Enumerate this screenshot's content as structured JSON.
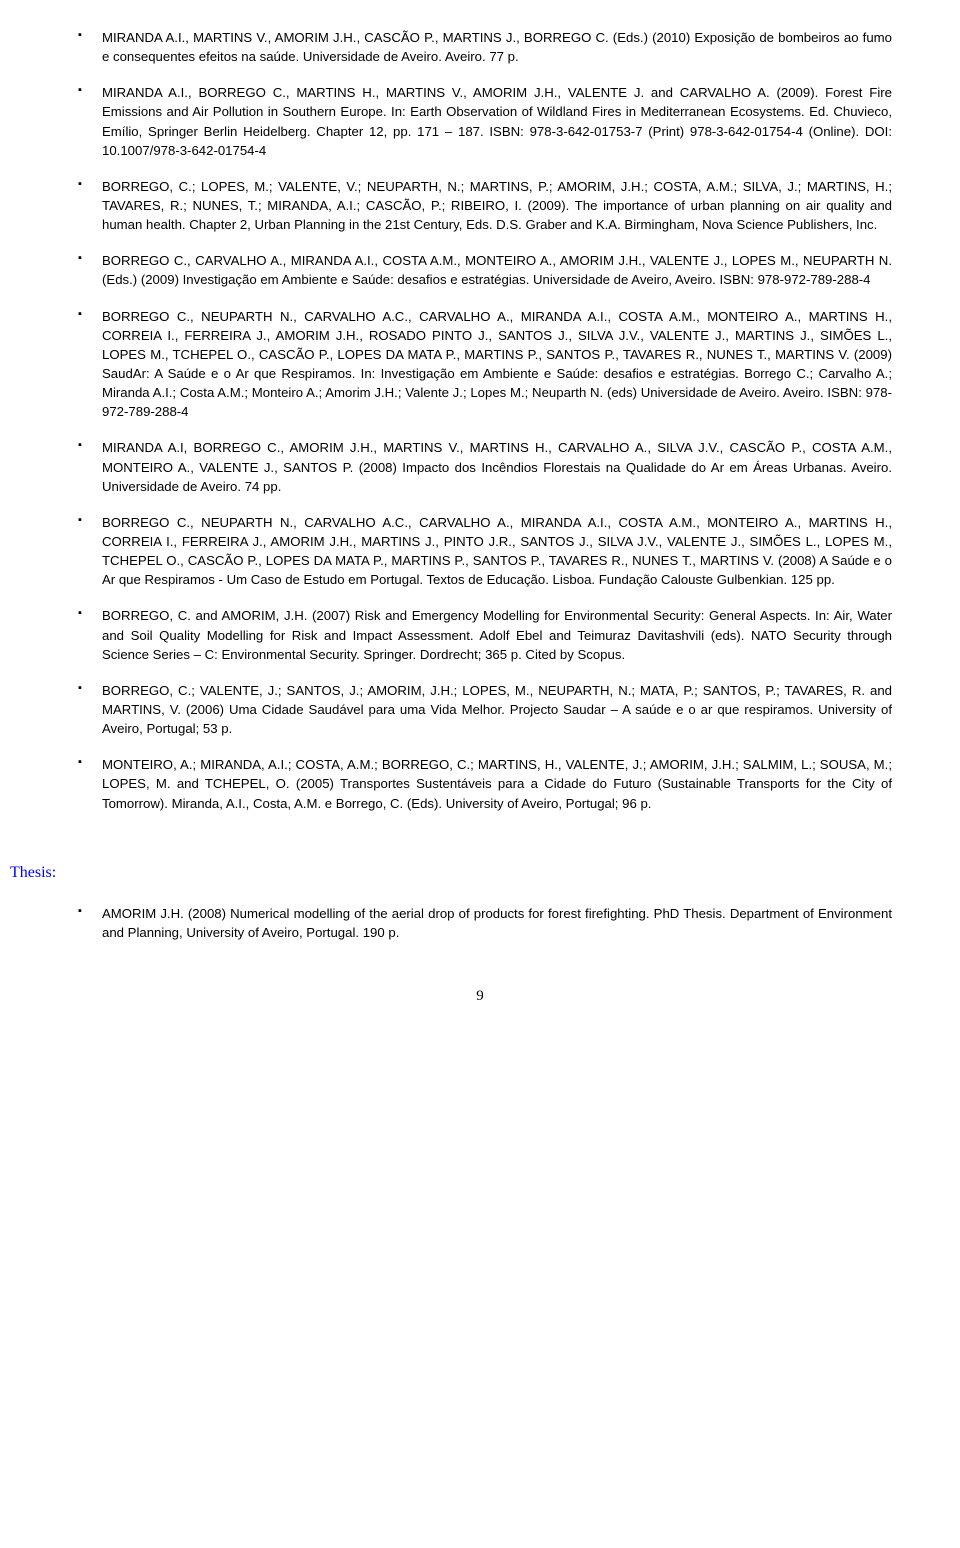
{
  "page": {
    "number": "9"
  },
  "sections": {
    "thesis_heading": "Thesis:"
  },
  "pubs": [
    "MIRANDA A.I., MARTINS V., AMORIM J.H., CASCÃO P., MARTINS J., BORREGO C. (Eds.) (2010) Exposição de bombeiros ao fumo e consequentes efeitos na saúde. Universidade de Aveiro. Aveiro. 77 p.",
    "MIRANDA A.I., BORREGO C., MARTINS H., MARTINS V., AMORIM J.H., VALENTE J. and CARVALHO A. (2009). Forest Fire Emissions and Air Pollution in Southern Europe. In: Earth Observation of Wildland Fires in Mediterranean Ecosystems. Ed. Chuvieco, Emílio, Springer Berlin Heidelberg. Chapter 12, pp. 171 – 187. ISBN: 978-3-642-01753-7 (Print) 978-3-642-01754-4 (Online). DOI: 10.1007/978-3-642-01754-4",
    "BORREGO, C.; LOPES, M.; VALENTE, V.; NEUPARTH, N.; MARTINS, P.; AMORIM, J.H.; COSTA, A.M.; SILVA, J.; MARTINS, H.; TAVARES, R.; NUNES, T.; MIRANDA, A.I.; CASCÃO, P.; RIBEIRO, I. (2009). The importance of urban planning on air quality and human health. Chapter 2, Urban Planning in the 21st Century, Eds. D.S. Graber and K.A. Birmingham, Nova Science Publishers, Inc.",
    "BORREGO C., CARVALHO A., MIRANDA A.I., COSTA A.M., MONTEIRO A., AMORIM J.H., VALENTE J., LOPES M., NEUPARTH N. (Eds.) (2009) Investigação em Ambiente e Saúde: desafios e estratégias. Universidade de Aveiro, Aveiro. ISBN: 978-972-789-288-4",
    "BORREGO C., NEUPARTH N., CARVALHO A.C., CARVALHO A., MIRANDA A.I., COSTA A.M., MONTEIRO A., MARTINS H., CORREIA I., FERREIRA J., AMORIM J.H., ROSADO PINTO J., SANTOS J., SILVA J.V., VALENTE J., MARTINS J., SIMÕES L., LOPES M., TCHEPEL O., CASCÃO P., LOPES DA MATA P., MARTINS P., SANTOS P., TAVARES R., NUNES T., MARTINS V. (2009) SaudAr: A Saúde e o Ar que Respiramos. In: Investigação em Ambiente e Saúde: desafios e estratégias. Borrego C.; Carvalho A.; Miranda A.I.; Costa A.M.; Monteiro A.; Amorim J.H.; Valente J.; Lopes M.; Neuparth N. (eds) Universidade de Aveiro. Aveiro. ISBN: 978-972-789-288-4",
    "MIRANDA A.I, BORREGO C., AMORIM J.H., MARTINS V., MARTINS H., CARVALHO A., SILVA J.V., CASCÃO P., COSTA A.M., MONTEIRO A., VALENTE J., SANTOS P. (2008) Impacto dos Incêndios Florestais na Qualidade do Ar em Áreas Urbanas. Aveiro. Universidade de Aveiro. 74 pp.",
    "BORREGO C., NEUPARTH N., CARVALHO A.C., CARVALHO A., MIRANDA A.I., COSTA A.M., MONTEIRO A., MARTINS H., CORREIA I., FERREIRA J., AMORIM J.H., MARTINS J., PINTO J.R., SANTOS J., SILVA J.V., VALENTE J., SIMÕES L., LOPES M., TCHEPEL O., CASCÃO P., LOPES DA MATA P., MARTINS P., SANTOS P., TAVARES R., NUNES T., MARTINS V. (2008) A Saúde e o Ar que Respiramos - Um Caso de Estudo em Portugal. Textos de Educação. Lisboa. Fundação Calouste Gulbenkian. 125 pp.",
    "BORREGO, C. and AMORIM, J.H. (2007) Risk and Emergency Modelling for Environmental Security: General Aspects. In: Air, Water and Soil Quality Modelling for Risk and Impact Assessment. Adolf Ebel and Teimuraz Davitashvili (eds). NATO Security through Science Series – C: Environmental Security. Springer. Dordrecht; 365 p. Cited by Scopus.",
    "BORREGO, C.; VALENTE, J.; SANTOS, J.; AMORIM, J.H.; LOPES, M., NEUPARTH, N.; MATA, P.; SANTOS, P.; TAVARES, R. and MARTINS, V. (2006) Uma Cidade Saudável para uma Vida Melhor. Projecto Saudar – A saúde e o ar que respiramos. University of Aveiro, Portugal; 53 p.",
    "MONTEIRO, A.; MIRANDA, A.I.; COSTA, A.M.; BORREGO, C.; MARTINS, H., VALENTE, J.; AMORIM, J.H.; SALMIM, L.; SOUSA, M.; LOPES, M. and TCHEPEL, O. (2005) Transportes Sustentáveis para a Cidade do Futuro (Sustainable Transports for the City of Tomorrow). Miranda, A.I., Costa, A.M. e Borrego, C. (Eds). University of Aveiro, Portugal; 96 p."
  ],
  "thesis": [
    "AMORIM J.H. (2008) Numerical modelling of the aerial drop of products for forest firefighting. PhD Thesis. Department of Environment and Planning, University of Aveiro, Portugal. 190 p."
  ]
}
